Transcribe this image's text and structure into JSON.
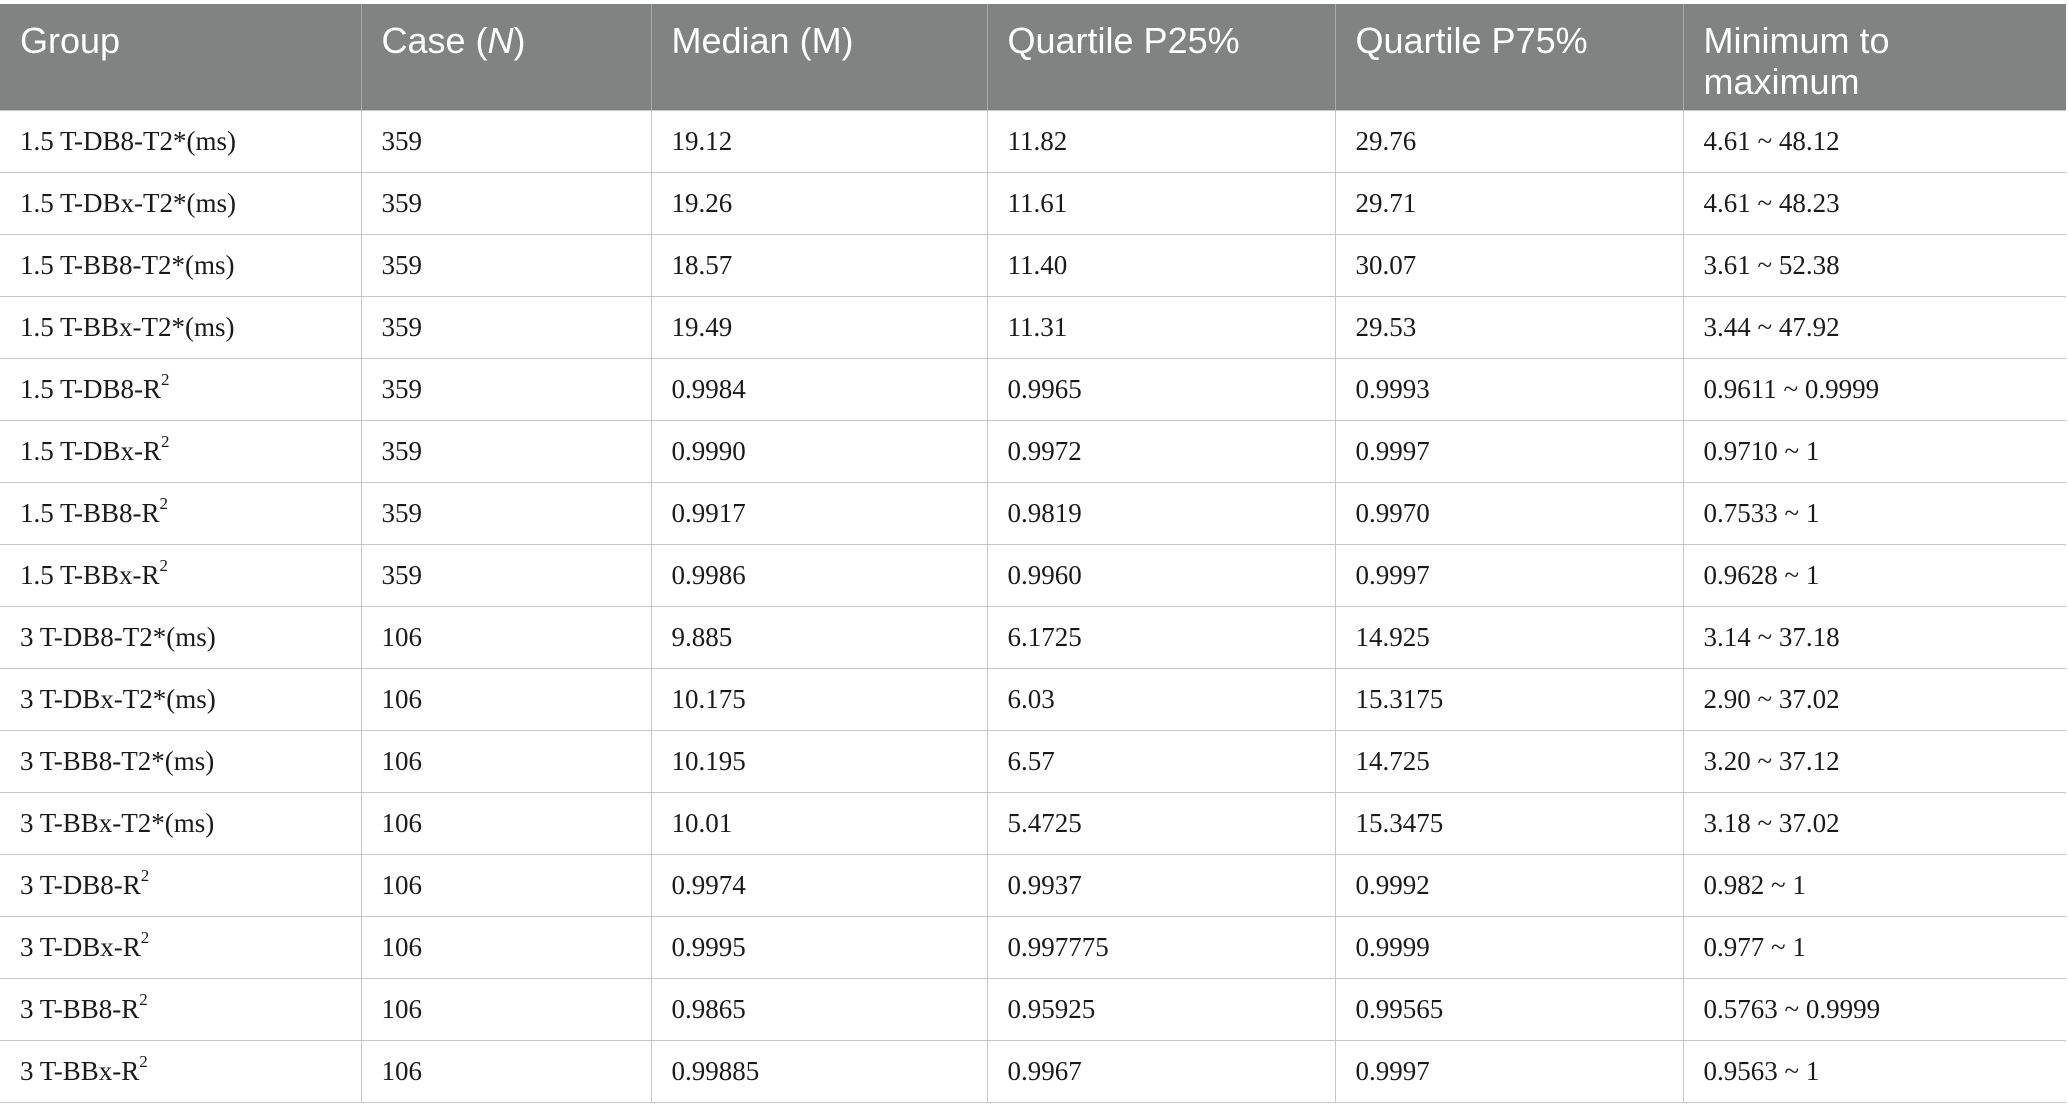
{
  "table": {
    "headers": {
      "group": "Group",
      "case_prefix": "Case (",
      "case_n": "N",
      "case_suffix": ")",
      "median": "Median (M)",
      "p25": "Quartile P25%",
      "p75": "Quartile P75%",
      "minmax": "Minimum to maximum"
    },
    "rows": [
      {
        "group": "1.5 T-DB8-T2*(ms)",
        "sup": "",
        "n": "359",
        "median": "19.12",
        "p25": "11.82",
        "p75": "29.76",
        "range": "4.61 ~ 48.12"
      },
      {
        "group": "1.5 T-DBx-T2*(ms)",
        "sup": "",
        "n": "359",
        "median": "19.26",
        "p25": "11.61",
        "p75": "29.71",
        "range": "4.61 ~ 48.23"
      },
      {
        "group": "1.5 T-BB8-T2*(ms)",
        "sup": "",
        "n": "359",
        "median": "18.57",
        "p25": "11.40",
        "p75": "30.07",
        "range": "3.61 ~ 52.38"
      },
      {
        "group": "1.5 T-BBx-T2*(ms)",
        "sup": "",
        "n": "359",
        "median": "19.49",
        "p25": "11.31",
        "p75": "29.53",
        "range": "3.44 ~ 47.92"
      },
      {
        "group": "1.5 T-DB8-R",
        "sup": "2",
        "n": "359",
        "median": "0.9984",
        "p25": "0.9965",
        "p75": "0.9993",
        "range": "0.9611 ~ 0.9999"
      },
      {
        "group": "1.5 T-DBx-R",
        "sup": "2",
        "n": "359",
        "median": "0.9990",
        "p25": "0.9972",
        "p75": "0.9997",
        "range": "0.9710 ~ 1"
      },
      {
        "group": "1.5 T-BB8-R",
        "sup": "2",
        "n": "359",
        "median": "0.9917",
        "p25": "0.9819",
        "p75": "0.9970",
        "range": "0.7533 ~ 1"
      },
      {
        "group": "1.5 T-BBx-R",
        "sup": "2",
        "n": "359",
        "median": "0.9986",
        "p25": "0.9960",
        "p75": "0.9997",
        "range": "0.9628 ~ 1"
      },
      {
        "group": "3 T-DB8-T2*(ms)",
        "sup": "",
        "n": "106",
        "median": "9.885",
        "p25": "6.1725",
        "p75": "14.925",
        "range": "3.14 ~ 37.18"
      },
      {
        "group": "3 T-DBx-T2*(ms)",
        "sup": "",
        "n": "106",
        "median": "10.175",
        "p25": "6.03",
        "p75": "15.3175",
        "range": "2.90 ~ 37.02"
      },
      {
        "group": "3 T-BB8-T2*(ms)",
        "sup": "",
        "n": "106",
        "median": "10.195",
        "p25": "6.57",
        "p75": "14.725",
        "range": "3.20 ~ 37.12"
      },
      {
        "group": "3 T-BBx-T2*(ms)",
        "sup": "",
        "n": "106",
        "median": "10.01",
        "p25": "5.4725",
        "p75": "15.3475",
        "range": "3.18 ~ 37.02"
      },
      {
        "group": "3 T-DB8-R",
        "sup": "2",
        "n": "106",
        "median": "0.9974",
        "p25": "0.9937",
        "p75": "0.9992",
        "range": "0.982 ~ 1"
      },
      {
        "group": "3 T-DBx-R",
        "sup": "2",
        "n": "106",
        "median": "0.9995",
        "p25": "0.997775",
        "p75": "0.9999",
        "range": "0.977 ~ 1"
      },
      {
        "group": "3 T-BB8-R",
        "sup": "2",
        "n": "106",
        "median": "0.9865",
        "p25": "0.95925",
        "p75": "0.99565",
        "range": "0.5763 ~ 0.9999"
      },
      {
        "group": "3 T-BBx-R",
        "sup": "2",
        "n": "106",
        "median": "0.99885",
        "p25": "0.9967",
        "p75": "0.9997",
        "range": "0.9563 ~ 1"
      }
    ]
  }
}
